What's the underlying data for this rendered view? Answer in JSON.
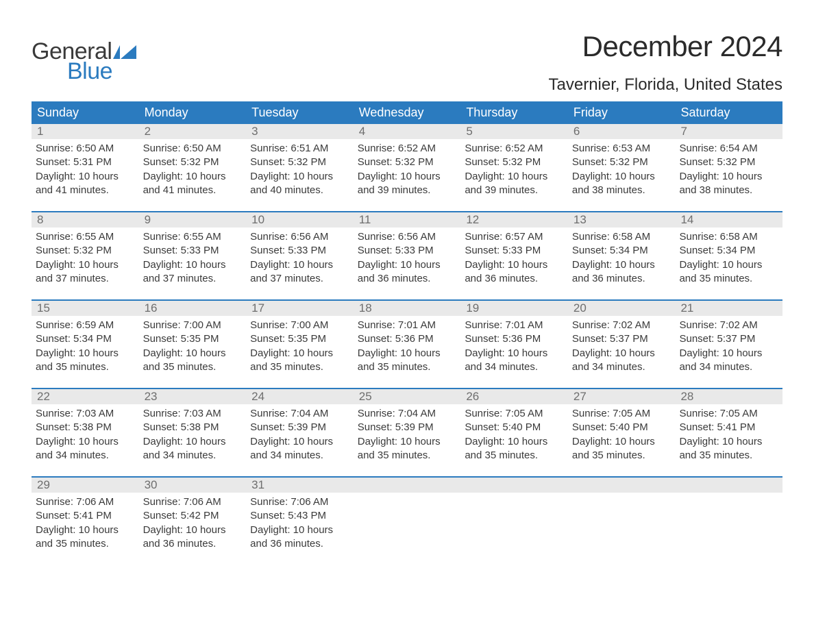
{
  "logo": {
    "text_general": "General",
    "text_blue": "Blue",
    "mark_color": "#2b7bbf"
  },
  "title": "December 2024",
  "location": "Tavernier, Florida, United States",
  "colors": {
    "header_bg": "#2b7bbf",
    "header_text": "#ffffff",
    "daynum_bg": "#e9e9e9",
    "daynum_text": "#6e6e6e",
    "body_text": "#3a3a3a",
    "week_divider": "#2b7bbf",
    "page_bg": "#ffffff"
  },
  "weekdays": [
    "Sunday",
    "Monday",
    "Tuesday",
    "Wednesday",
    "Thursday",
    "Friday",
    "Saturday"
  ],
  "weeks": [
    [
      {
        "day": "1",
        "sunrise": "Sunrise: 6:50 AM",
        "sunset": "Sunset: 5:31 PM",
        "daylight1": "Daylight: 10 hours",
        "daylight2": "and 41 minutes."
      },
      {
        "day": "2",
        "sunrise": "Sunrise: 6:50 AM",
        "sunset": "Sunset: 5:32 PM",
        "daylight1": "Daylight: 10 hours",
        "daylight2": "and 41 minutes."
      },
      {
        "day": "3",
        "sunrise": "Sunrise: 6:51 AM",
        "sunset": "Sunset: 5:32 PM",
        "daylight1": "Daylight: 10 hours",
        "daylight2": "and 40 minutes."
      },
      {
        "day": "4",
        "sunrise": "Sunrise: 6:52 AM",
        "sunset": "Sunset: 5:32 PM",
        "daylight1": "Daylight: 10 hours",
        "daylight2": "and 39 minutes."
      },
      {
        "day": "5",
        "sunrise": "Sunrise: 6:52 AM",
        "sunset": "Sunset: 5:32 PM",
        "daylight1": "Daylight: 10 hours",
        "daylight2": "and 39 minutes."
      },
      {
        "day": "6",
        "sunrise": "Sunrise: 6:53 AM",
        "sunset": "Sunset: 5:32 PM",
        "daylight1": "Daylight: 10 hours",
        "daylight2": "and 38 minutes."
      },
      {
        "day": "7",
        "sunrise": "Sunrise: 6:54 AM",
        "sunset": "Sunset: 5:32 PM",
        "daylight1": "Daylight: 10 hours",
        "daylight2": "and 38 minutes."
      }
    ],
    [
      {
        "day": "8",
        "sunrise": "Sunrise: 6:55 AM",
        "sunset": "Sunset: 5:32 PM",
        "daylight1": "Daylight: 10 hours",
        "daylight2": "and 37 minutes."
      },
      {
        "day": "9",
        "sunrise": "Sunrise: 6:55 AM",
        "sunset": "Sunset: 5:33 PM",
        "daylight1": "Daylight: 10 hours",
        "daylight2": "and 37 minutes."
      },
      {
        "day": "10",
        "sunrise": "Sunrise: 6:56 AM",
        "sunset": "Sunset: 5:33 PM",
        "daylight1": "Daylight: 10 hours",
        "daylight2": "and 37 minutes."
      },
      {
        "day": "11",
        "sunrise": "Sunrise: 6:56 AM",
        "sunset": "Sunset: 5:33 PM",
        "daylight1": "Daylight: 10 hours",
        "daylight2": "and 36 minutes."
      },
      {
        "day": "12",
        "sunrise": "Sunrise: 6:57 AM",
        "sunset": "Sunset: 5:33 PM",
        "daylight1": "Daylight: 10 hours",
        "daylight2": "and 36 minutes."
      },
      {
        "day": "13",
        "sunrise": "Sunrise: 6:58 AM",
        "sunset": "Sunset: 5:34 PM",
        "daylight1": "Daylight: 10 hours",
        "daylight2": "and 36 minutes."
      },
      {
        "day": "14",
        "sunrise": "Sunrise: 6:58 AM",
        "sunset": "Sunset: 5:34 PM",
        "daylight1": "Daylight: 10 hours",
        "daylight2": "and 35 minutes."
      }
    ],
    [
      {
        "day": "15",
        "sunrise": "Sunrise: 6:59 AM",
        "sunset": "Sunset: 5:34 PM",
        "daylight1": "Daylight: 10 hours",
        "daylight2": "and 35 minutes."
      },
      {
        "day": "16",
        "sunrise": "Sunrise: 7:00 AM",
        "sunset": "Sunset: 5:35 PM",
        "daylight1": "Daylight: 10 hours",
        "daylight2": "and 35 minutes."
      },
      {
        "day": "17",
        "sunrise": "Sunrise: 7:00 AM",
        "sunset": "Sunset: 5:35 PM",
        "daylight1": "Daylight: 10 hours",
        "daylight2": "and 35 minutes."
      },
      {
        "day": "18",
        "sunrise": "Sunrise: 7:01 AM",
        "sunset": "Sunset: 5:36 PM",
        "daylight1": "Daylight: 10 hours",
        "daylight2": "and 35 minutes."
      },
      {
        "day": "19",
        "sunrise": "Sunrise: 7:01 AM",
        "sunset": "Sunset: 5:36 PM",
        "daylight1": "Daylight: 10 hours",
        "daylight2": "and 34 minutes."
      },
      {
        "day": "20",
        "sunrise": "Sunrise: 7:02 AM",
        "sunset": "Sunset: 5:37 PM",
        "daylight1": "Daylight: 10 hours",
        "daylight2": "and 34 minutes."
      },
      {
        "day": "21",
        "sunrise": "Sunrise: 7:02 AM",
        "sunset": "Sunset: 5:37 PM",
        "daylight1": "Daylight: 10 hours",
        "daylight2": "and 34 minutes."
      }
    ],
    [
      {
        "day": "22",
        "sunrise": "Sunrise: 7:03 AM",
        "sunset": "Sunset: 5:38 PM",
        "daylight1": "Daylight: 10 hours",
        "daylight2": "and 34 minutes."
      },
      {
        "day": "23",
        "sunrise": "Sunrise: 7:03 AM",
        "sunset": "Sunset: 5:38 PM",
        "daylight1": "Daylight: 10 hours",
        "daylight2": "and 34 minutes."
      },
      {
        "day": "24",
        "sunrise": "Sunrise: 7:04 AM",
        "sunset": "Sunset: 5:39 PM",
        "daylight1": "Daylight: 10 hours",
        "daylight2": "and 34 minutes."
      },
      {
        "day": "25",
        "sunrise": "Sunrise: 7:04 AM",
        "sunset": "Sunset: 5:39 PM",
        "daylight1": "Daylight: 10 hours",
        "daylight2": "and 35 minutes."
      },
      {
        "day": "26",
        "sunrise": "Sunrise: 7:05 AM",
        "sunset": "Sunset: 5:40 PM",
        "daylight1": "Daylight: 10 hours",
        "daylight2": "and 35 minutes."
      },
      {
        "day": "27",
        "sunrise": "Sunrise: 7:05 AM",
        "sunset": "Sunset: 5:40 PM",
        "daylight1": "Daylight: 10 hours",
        "daylight2": "and 35 minutes."
      },
      {
        "day": "28",
        "sunrise": "Sunrise: 7:05 AM",
        "sunset": "Sunset: 5:41 PM",
        "daylight1": "Daylight: 10 hours",
        "daylight2": "and 35 minutes."
      }
    ],
    [
      {
        "day": "29",
        "sunrise": "Sunrise: 7:06 AM",
        "sunset": "Sunset: 5:41 PM",
        "daylight1": "Daylight: 10 hours",
        "daylight2": "and 35 minutes."
      },
      {
        "day": "30",
        "sunrise": "Sunrise: 7:06 AM",
        "sunset": "Sunset: 5:42 PM",
        "daylight1": "Daylight: 10 hours",
        "daylight2": "and 36 minutes."
      },
      {
        "day": "31",
        "sunrise": "Sunrise: 7:06 AM",
        "sunset": "Sunset: 5:43 PM",
        "daylight1": "Daylight: 10 hours",
        "daylight2": "and 36 minutes."
      },
      {
        "empty": true
      },
      {
        "empty": true
      },
      {
        "empty": true
      },
      {
        "empty": true
      }
    ]
  ]
}
